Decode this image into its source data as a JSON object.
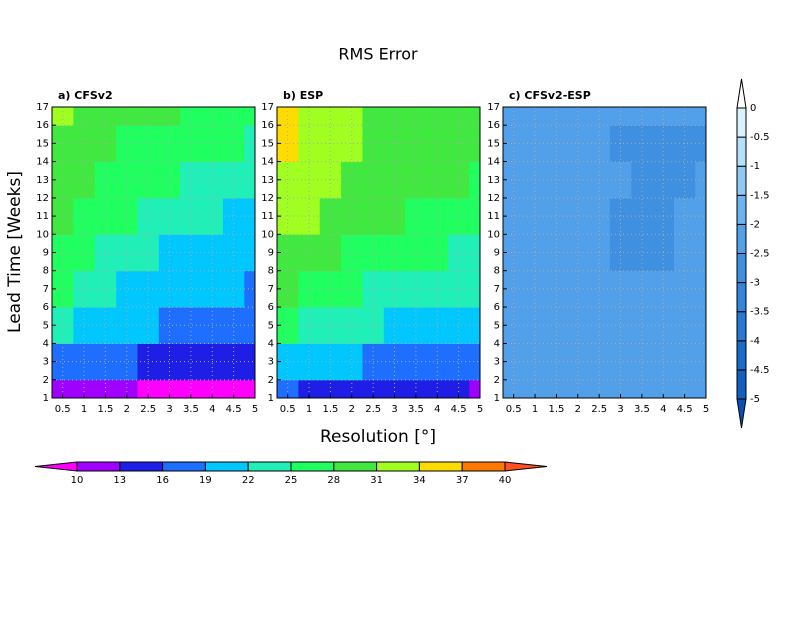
{
  "title": "RMS Error",
  "chart_data": [
    {
      "type": "contour",
      "title": "a) CFSv2",
      "ylabel": "Lead Time [Weeks]",
      "x": [
        0.5,
        1,
        1.5,
        2,
        2.5,
        3,
        3.5,
        4,
        4.5,
        5
      ],
      "y": [
        1,
        3,
        5,
        7,
        9,
        11,
        13,
        15,
        17
      ],
      "z": [
        [
          11,
          10.5,
          10,
          10,
          9.8,
          9.6,
          9.5,
          9.4,
          9.3,
          9.2
        ],
        [
          18,
          17,
          16.5,
          16,
          15.5,
          15,
          14.8,
          14.5,
          14.2,
          14
        ],
        [
          23,
          21,
          20,
          19.5,
          19,
          18.8,
          18.5,
          18,
          17.5,
          17
        ],
        [
          25.5,
          24,
          22.5,
          21.5,
          20.5,
          19.8,
          19.5,
          19.2,
          19,
          18.8
        ],
        [
          27,
          25.5,
          24.5,
          23.5,
          22.5,
          21.5,
          21,
          20.5,
          20,
          19.5
        ],
        [
          28.5,
          27,
          26,
          25,
          24,
          23.5,
          22.8,
          22.2,
          21.5,
          21
        ],
        [
          29.5,
          28.5,
          27.5,
          26.5,
          25.8,
          25,
          24.5,
          23.8,
          23,
          22.5
        ],
        [
          30.5,
          29.5,
          28.5,
          27.8,
          27,
          26.5,
          26,
          25.5,
          25,
          24.5
        ],
        [
          31.5,
          30.5,
          29.5,
          29,
          28.5,
          28,
          27.5,
          27,
          26.5,
          26
        ]
      ],
      "xlim": [
        0.25,
        5
      ],
      "ylim": [
        1,
        17
      ],
      "xticks": [
        0.5,
        1,
        1.5,
        2,
        2.5,
        3,
        3.5,
        4,
        4.5,
        5
      ],
      "yticks": [
        1,
        2,
        3,
        4,
        5,
        6,
        7,
        8,
        9,
        10,
        11,
        12,
        13,
        14,
        15,
        16,
        17
      ],
      "grid": true,
      "levels": [
        10,
        13,
        16,
        19,
        22,
        25,
        28,
        31,
        34,
        37,
        40
      ],
      "colors": [
        "#ff00ff",
        "#a000ff",
        "#1e1ee6",
        "#1e6eff",
        "#00c8ff",
        "#20f0b8",
        "#20ff60",
        "#40e840",
        "#a0ff20",
        "#ffdc00",
        "#ff7800",
        "#ff5020"
      ]
    },
    {
      "type": "contour",
      "title": "b) ESP",
      "xlabel": "Resolution [°]",
      "x": [
        0.5,
        1,
        1.5,
        2,
        2.5,
        3,
        3.5,
        4,
        4.5,
        5
      ],
      "y": [
        1,
        3,
        5,
        7,
        9,
        11,
        13,
        15,
        17
      ],
      "z": [
        [
          16,
          15.5,
          15,
          14.5,
          14,
          13.8,
          13.5,
          13.2,
          13,
          12.8
        ],
        [
          21,
          20,
          19.5,
          19,
          18.5,
          18.2,
          18,
          17.5,
          17.2,
          17
        ],
        [
          26,
          24.5,
          23,
          22.5,
          22,
          21.5,
          21,
          20.5,
          20,
          19.5
        ],
        [
          29,
          27.5,
          26,
          25.5,
          24.8,
          24.3,
          23.8,
          23.2,
          22.8,
          22.3
        ],
        [
          30.5,
          29.5,
          28.5,
          27.5,
          26.8,
          26,
          25.5,
          25,
          24.5,
          24
        ],
        [
          32,
          31,
          30,
          29,
          28.5,
          28,
          27.5,
          27,
          26.5,
          26
        ],
        [
          33,
          32,
          31,
          30,
          29.5,
          29,
          28.5,
          28.2,
          28,
          27.5
        ],
        [
          34.5,
          33,
          32,
          31,
          30.5,
          30,
          29.5,
          29,
          28.5,
          28.2
        ],
        [
          35,
          33.5,
          32.5,
          31.5,
          30.8,
          30.3,
          30,
          29.5,
          29,
          28.5
        ]
      ],
      "xlim": [
        0.25,
        5
      ],
      "ylim": [
        1,
        17
      ],
      "xticks": [
        0.5,
        1,
        1.5,
        2,
        2.5,
        3,
        3.5,
        4,
        4.5,
        5
      ],
      "yticks": [
        1,
        2,
        3,
        4,
        5,
        6,
        7,
        8,
        9,
        10,
        11,
        12,
        13,
        14,
        15,
        16,
        17
      ],
      "grid": true,
      "levels": [
        10,
        13,
        16,
        19,
        22,
        25,
        28,
        31,
        34,
        37,
        40
      ],
      "colors": [
        "#ff00ff",
        "#a000ff",
        "#1e1ee6",
        "#1e6eff",
        "#00c8ff",
        "#20f0b8",
        "#20ff60",
        "#40e840",
        "#a0ff20",
        "#ffdc00",
        "#ff7800",
        "#ff5020"
      ]
    },
    {
      "type": "contour",
      "title": "c) CFSv2-ESP",
      "x": [
        0.5,
        1,
        1.5,
        2,
        2.5,
        3,
        3.5,
        4,
        4.5,
        5
      ],
      "y": [
        1,
        3,
        5,
        7,
        9,
        11,
        13,
        15,
        17
      ],
      "z": [
        [
          -2.2,
          -2.2,
          -2.2,
          -2.2,
          -2.2,
          -2.3,
          -2.3,
          -2.3,
          -2.3,
          -2.3
        ],
        [
          -2.3,
          -2.3,
          -2.3,
          -2.3,
          -2.3,
          -2.3,
          -2.3,
          -2.3,
          -2.3,
          -2.3
        ],
        [
          -2.3,
          -2.3,
          -2.4,
          -2.3,
          -2.3,
          -2.3,
          -2.3,
          -2.3,
          -2.3,
          -2.3
        ],
        [
          -2.2,
          -2.3,
          -2.3,
          -2.3,
          -2.3,
          -2.4,
          -2.4,
          -2.4,
          -2.4,
          -2.4
        ],
        [
          -2.2,
          -2.3,
          -2.4,
          -2.4,
          -2.4,
          -2.6,
          -2.6,
          -2.6,
          -2.4,
          -2.4
        ],
        [
          -2.2,
          -2.3,
          -2.3,
          -2.4,
          -2.4,
          -2.6,
          -2.6,
          -2.6,
          -2.4,
          -2.4
        ],
        [
          -2.2,
          -2.3,
          -2.3,
          -2.3,
          -2.3,
          -2.4,
          -2.6,
          -2.6,
          -2.6,
          -2.4
        ],
        [
          -2.2,
          -2.3,
          -2.3,
          -2.3,
          -2.3,
          -2.6,
          -2.6,
          -2.6,
          -2.6,
          -2.6
        ],
        [
          -2.1,
          -2.2,
          -2.3,
          -2.3,
          -2.3,
          -2.3,
          -2.3,
          -2.3,
          -2.3,
          -2.3
        ]
      ],
      "xlim": [
        0.25,
        5
      ],
      "ylim": [
        1,
        17
      ],
      "xticks": [
        0.5,
        1,
        1.5,
        2,
        2.5,
        3,
        3.5,
        4,
        4.5,
        5
      ],
      "yticks": [
        1,
        2,
        3,
        4,
        5,
        6,
        7,
        8,
        9,
        10,
        11,
        12,
        13,
        14,
        15,
        16,
        17
      ],
      "grid": true,
      "levels": [
        -5,
        -4.5,
        -4,
        -3.5,
        -3,
        -2.5,
        -2,
        -1.5,
        -1,
        -0.5,
        0
      ],
      "colors": [
        "#0a50b4",
        "#1060c0",
        "#1a6ccc",
        "#2a78d6",
        "#3584dc",
        "#4090e2",
        "#52a0ea",
        "#6cb4f0",
        "#8ecaf4",
        "#b4e0f8",
        "#daf2fc",
        "#ffffff"
      ]
    }
  ]
}
